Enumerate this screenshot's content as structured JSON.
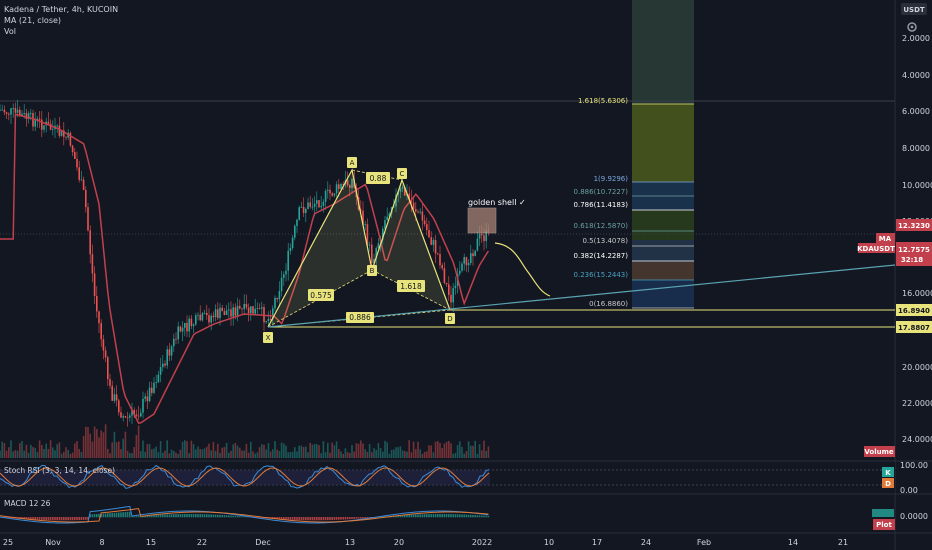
{
  "header": {
    "title": "Kadena / Tether, 4h, KUCOIN",
    "ma": "MA (21, close)",
    "vol": "Vol"
  },
  "colors": {
    "background": "#131722",
    "pattern": "#e8e37a",
    "ma": "#c2404c",
    "up": "#26a69a",
    "down": "#ef5350",
    "trendline": "#5aa3b0",
    "target_zone": "#3b5a2a"
  },
  "price_axis": {
    "currency": "USDT",
    "ticks": [
      "2.0000",
      "4.0000",
      "6.0000",
      "8.0000",
      "10.0000",
      "12.0000",
      "16.0000",
      "20.0000",
      "22.0000",
      "24.0000"
    ],
    "current_price": "12.7575",
    "countdown": "32:18",
    "symbol_tag": "KDAUSDT",
    "ma_tag": "MA",
    "ma_value": "12.3230",
    "level_1": "16.8940",
    "level_2": "17.8807",
    "volume_tag": "Volume"
  },
  "time_axis": [
    "25",
    "Nov",
    "8",
    "15",
    "22",
    "Dec",
    "13",
    "20",
    "2022",
    "10",
    "17",
    "24",
    "Feb",
    "14",
    "21"
  ],
  "pattern": {
    "points": [
      "X",
      "A",
      "B",
      "C",
      "D"
    ],
    "ratios": [
      "0.575",
      "0.88",
      "1.618",
      "0.886"
    ]
  },
  "annotation": "golden shell ✓",
  "fib_levels": [
    {
      "label": "1.618(5.6306)"
    },
    {
      "label": "1(9.9296)"
    },
    {
      "label": "0.886(10.7227)"
    },
    {
      "label": "0.786(11.4183)"
    },
    {
      "label": "0.618(12.5870)"
    },
    {
      "label": "0.5(13.4078)"
    },
    {
      "label": "0.382(14.2287)"
    },
    {
      "label": "0.236(15.2443)"
    },
    {
      "label": "0(16.8860)"
    }
  ],
  "stoch": {
    "title": "Stoch RSI (3, 3, 14, 14, close)",
    "axis_top": "100.00",
    "axis_bottom": "0.00",
    "k_tag": "K",
    "d_tag": "D"
  },
  "macd": {
    "title": "MACD 12 26",
    "axis_value": "0.0000",
    "plot_tag": "Plot"
  },
  "icons": [
    "settings-icon"
  ]
}
